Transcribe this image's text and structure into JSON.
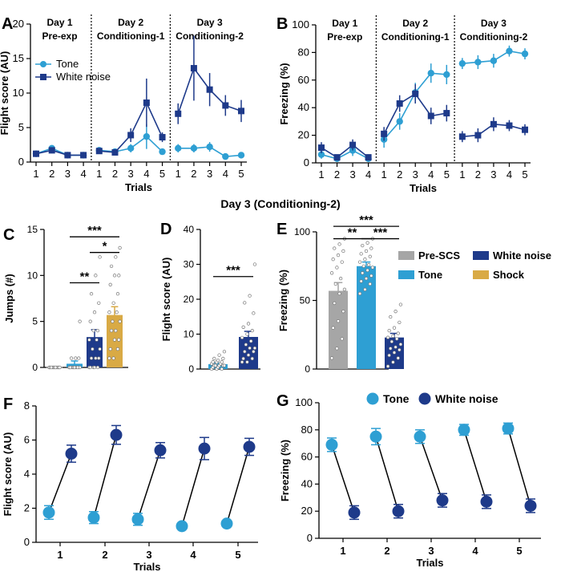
{
  "figure": {
    "panel_letters": [
      "A",
      "B",
      "C",
      "D",
      "E",
      "F",
      "G"
    ],
    "day3_heading": "Day 3 (Conditioning-2)",
    "colors": {
      "tone": "#2e9fd3",
      "white_noise": "#1e3a8a",
      "pre_scs": "#a6a6a6",
      "shock": "#d9aa45",
      "pair_line": "#000000"
    }
  },
  "chart_data": [
    {
      "panel": "A",
      "type": "line",
      "ylabel": "Flight score (AU)",
      "xlabel": "Trials",
      "ylim": [
        0,
        20
      ],
      "yticks": [
        0,
        5,
        10,
        15,
        20
      ],
      "phases": [
        {
          "name": "Day 1",
          "sub": "Pre-exp",
          "trials": [
            1,
            2,
            3,
            4
          ]
        },
        {
          "name": "Day 2",
          "sub": "Conditioning-1",
          "trials": [
            1,
            2,
            3,
            4,
            5
          ]
        },
        {
          "name": "Day 3",
          "sub": "Conditioning-2",
          "trials": [
            1,
            2,
            3,
            4,
            5
          ]
        }
      ],
      "legend": {
        "placement": "top-left",
        "entries": [
          "Tone",
          "White noise"
        ]
      },
      "series": [
        {
          "name": "Tone",
          "color_key": "tone",
          "marker": "circle",
          "values": [
            [
              1.2,
              2.0,
              1.0,
              1.0
            ],
            [
              1.7,
              1.5,
              2.0,
              3.7,
              1.5
            ],
            [
              2.0,
              2.0,
              2.2,
              0.8,
              1.0
            ]
          ],
          "errors": [
            [
              0.3,
              0.4,
              0.2,
              0.2
            ],
            [
              0.4,
              0.3,
              0.6,
              1.8,
              0.4
            ],
            [
              0.6,
              0.6,
              0.7,
              0.2,
              0.2
            ]
          ]
        },
        {
          "name": "White noise",
          "color_key": "white_noise",
          "marker": "square",
          "values": [
            [
              1.2,
              1.7,
              1.0,
              1.0
            ],
            [
              1.6,
              1.4,
              3.9,
              8.6,
              3.6
            ],
            [
              7.0,
              13.6,
              10.5,
              8.2,
              7.4
            ]
          ],
          "errors": [
            [
              0.3,
              0.4,
              0.2,
              0.2
            ],
            [
              0.4,
              0.3,
              1.0,
              3.5,
              0.7
            ],
            [
              1.5,
              4.7,
              2.4,
              1.5,
              1.6
            ]
          ]
        }
      ]
    },
    {
      "panel": "B",
      "type": "line",
      "ylabel": "Freezing (%)",
      "xlabel": "Trials",
      "ylim": [
        0,
        100
      ],
      "yticks": [
        0,
        20,
        40,
        60,
        80,
        100
      ],
      "phases": [
        {
          "name": "Day 1",
          "sub": "Pre-exp",
          "trials": [
            1,
            2,
            3,
            4
          ]
        },
        {
          "name": "Day 2",
          "sub": "Conditioning-1",
          "trials": [
            1,
            2,
            3,
            4,
            5
          ]
        },
        {
          "name": "Day 3",
          "sub": "Conditioning-2",
          "trials": [
            1,
            2,
            3,
            4,
            5
          ]
        }
      ],
      "series": [
        {
          "name": "Tone",
          "color_key": "tone",
          "marker": "circle",
          "values": [
            [
              6,
              3,
              9,
              3
            ],
            [
              17,
              30,
              51,
              65,
              64
            ],
            [
              72,
              73,
              74,
              81,
              79
            ]
          ],
          "errors": [
            [
              3,
              2,
              4,
              2
            ],
            [
              6,
              6,
              7,
              7,
              7
            ],
            [
              4,
              5,
              5,
              4,
              4
            ]
          ]
        },
        {
          "name": "White noise",
          "color_key": "white_noise",
          "marker": "square",
          "values": [
            [
              11,
              4,
              13,
              4
            ],
            [
              21,
              43,
              50,
              34,
              36
            ],
            [
              19,
              20,
              28,
              27,
              24
            ]
          ],
          "errors": [
            [
              4,
              2,
              4,
              2
            ],
            [
              5,
              6,
              7,
              6,
              6
            ],
            [
              4,
              5,
              5,
              4,
              4
            ]
          ]
        }
      ]
    },
    {
      "panel": "C",
      "type": "bar",
      "ylabel": "Jumps (#)",
      "ylim": [
        0,
        15
      ],
      "yticks": [
        0,
        5,
        10,
        15
      ],
      "categories": [
        "Pre-SCS",
        "Tone",
        "White noise",
        "Shock"
      ],
      "color_keys": [
        "pre_scs",
        "tone",
        "white_noise",
        "shock"
      ],
      "values": [
        0.05,
        0.4,
        3.3,
        5.7
      ],
      "errors": [
        0.05,
        0.3,
        0.8,
        0.9
      ],
      "points": [
        [
          0,
          0,
          0,
          0,
          0,
          0,
          0,
          0,
          0,
          0,
          0,
          0,
          0,
          0,
          0,
          0,
          0,
          0,
          0,
          0
        ],
        [
          0,
          0,
          0,
          0,
          0,
          0,
          0,
          0,
          0,
          0,
          0,
          0,
          0,
          0,
          0,
          0,
          1,
          1,
          1,
          5
        ],
        [
          0,
          0,
          0,
          0,
          0,
          1,
          1,
          1,
          2,
          2,
          3,
          3,
          4,
          4,
          5,
          6,
          7,
          8,
          10,
          12
        ],
        [
          1,
          1,
          2,
          2,
          3,
          3,
          4,
          4,
          5,
          5,
          6,
          6,
          7,
          8,
          9,
          10,
          10,
          11,
          12,
          13
        ]
      ],
      "significance": [
        {
          "from": 1,
          "to": 3,
          "label": "***",
          "y": 14.2
        },
        {
          "from": 2,
          "to": 3,
          "label": "*",
          "y": 12.5
        },
        {
          "from": 1,
          "to": 2,
          "label": "**",
          "y": 9.2
        }
      ]
    },
    {
      "panel": "D",
      "type": "bar",
      "ylabel": "Flight score (AU)",
      "ylim": [
        0,
        40
      ],
      "yticks": [
        0,
        10,
        20,
        30,
        40
      ],
      "categories": [
        "Tone",
        "White noise"
      ],
      "color_keys": [
        "tone",
        "white_noise"
      ],
      "values": [
        1.4,
        9.2
      ],
      "errors": [
        0.3,
        1.6
      ],
      "points": [
        [
          0,
          0,
          0,
          0.5,
          0.5,
          1,
          1,
          1,
          1,
          1,
          1.5,
          1.5,
          2,
          2,
          2,
          2.5,
          3,
          3,
          4,
          5
        ],
        [
          2,
          2,
          3,
          3,
          4,
          5,
          5,
          6,
          6,
          7,
          8,
          9,
          10,
          11,
          12,
          13,
          16,
          19,
          21,
          30
        ]
      ],
      "significance": [
        {
          "from": 0,
          "to": 1,
          "label": "***",
          "y": 26.5
        }
      ]
    },
    {
      "panel": "E",
      "type": "bar",
      "ylabel": "Freezing (%)",
      "ylim": [
        0,
        100
      ],
      "yticks": [
        0,
        50,
        100
      ],
      "categories": [
        "Pre-SCS",
        "Tone",
        "White noise"
      ],
      "color_keys": [
        "pre_scs",
        "tone",
        "white_noise"
      ],
      "values": [
        57,
        75,
        23
      ],
      "errors": [
        6,
        3,
        3
      ],
      "points": [
        [
          8,
          15,
          22,
          30,
          35,
          42,
          48,
          55,
          58,
          62,
          66,
          70,
          74,
          78,
          80,
          83,
          86,
          88,
          91,
          95
        ],
        [
          55,
          58,
          62,
          64,
          66,
          68,
          70,
          72,
          74,
          75,
          76,
          78,
          80,
          82,
          84,
          86,
          88,
          90,
          92,
          95
        ],
        [
          2,
          5,
          8,
          10,
          12,
          14,
          15,
          16,
          18,
          20,
          22,
          23,
          24,
          26,
          28,
          30,
          34,
          38,
          42,
          47
        ]
      ],
      "significance": [
        {
          "from": 0,
          "to": 2,
          "label": "***",
          "y": 104
        },
        {
          "from": 0,
          "to": 1,
          "label": "**",
          "y": 95
        },
        {
          "from": 1,
          "to": 2,
          "label": "***",
          "y": 95
        }
      ],
      "legend": {
        "placement": "right",
        "entries": [
          "Pre-SCS",
          "White noise",
          "Tone",
          "Shock"
        ],
        "color_keys": [
          "pre_scs",
          "white_noise",
          "tone",
          "shock"
        ]
      }
    },
    {
      "panel": "F",
      "type": "scatter",
      "ylabel": "Flight score (AU)",
      "xlabel": "Trials",
      "ylim": [
        0,
        8
      ],
      "yticks": [
        0,
        2,
        4,
        6,
        8
      ],
      "categories": [
        "1",
        "2",
        "3",
        "4",
        "5"
      ],
      "series": [
        {
          "name": "Tone",
          "color_key": "tone",
          "values": [
            1.75,
            1.45,
            1.35,
            0.95,
            1.1
          ],
          "errors": [
            0.4,
            0.35,
            0.35,
            0.0,
            0.0
          ]
        },
        {
          "name": "White noise",
          "color_key": "white_noise",
          "values": [
            5.2,
            6.3,
            5.4,
            5.5,
            5.6
          ],
          "errors": [
            0.5,
            0.55,
            0.45,
            0.65,
            0.5
          ]
        }
      ]
    },
    {
      "panel": "G",
      "type": "scatter",
      "ylabel": "Freezing (%)",
      "xlabel": "Trials",
      "ylim": [
        0,
        100
      ],
      "yticks": [
        0,
        20,
        40,
        60,
        80,
        100
      ],
      "categories": [
        "1",
        "2",
        "3",
        "4",
        "5"
      ],
      "legend": {
        "placement": "top",
        "entries": [
          "Tone",
          "White noise"
        ]
      },
      "series": [
        {
          "name": "Tone",
          "color_key": "tone",
          "values": [
            69,
            75,
            75,
            80,
            81
          ],
          "errors": [
            5,
            6,
            5,
            4,
            4
          ]
        },
        {
          "name": "White noise",
          "color_key": "white_noise",
          "values": [
            19,
            20,
            28,
            27,
            24
          ],
          "errors": [
            5,
            5,
            5,
            5,
            5
          ]
        }
      ]
    }
  ]
}
